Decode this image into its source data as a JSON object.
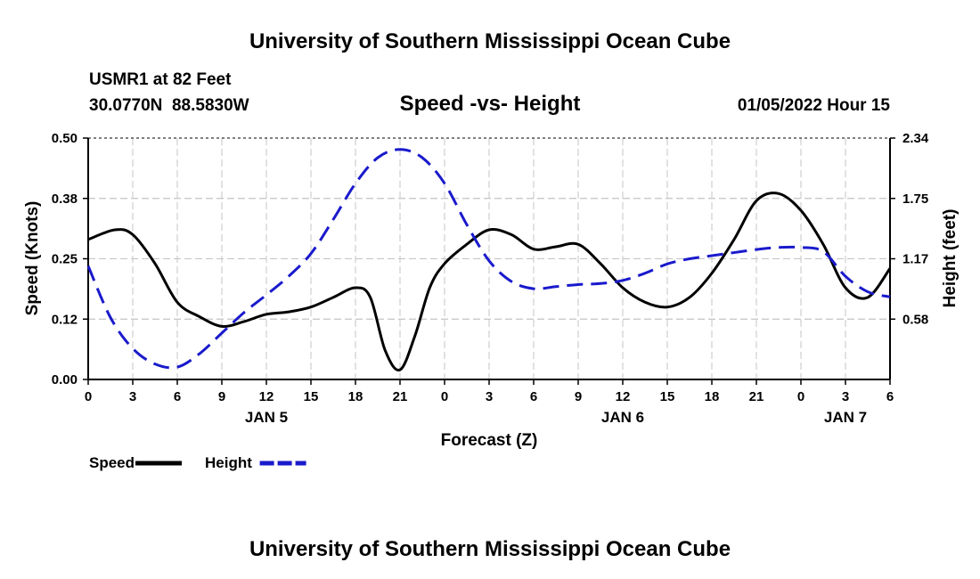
{
  "chart_data": {
    "type": "line",
    "title": "University of Southern Mississippi Ocean Cube",
    "footer_title": "University of Southern Mississippi Ocean Cube",
    "station": "USMR1 at 82 Feet",
    "location": "30.0770N  88.5830W",
    "subtitle": "Speed -vs- Height",
    "date": "01/05/2022 Hour 15",
    "xlabel": "Forecast (Z)",
    "ylabel": "Speed (Knots)",
    "ylabel_right": "Height (feet)",
    "x_ticks": [
      "0",
      "3",
      "6",
      "9",
      "12",
      "15",
      "18",
      "21",
      "0",
      "3",
      "6",
      "9",
      "12",
      "15",
      "18",
      "21",
      "0",
      "3",
      "6"
    ],
    "day_labels": [
      {
        "label": "JAN 5",
        "x": 12
      },
      {
        "label": "JAN 6",
        "x": 36
      },
      {
        "label": "JAN 7",
        "x": 51
      }
    ],
    "xlim": [
      0,
      54
    ],
    "ylim": [
      0,
      0.5
    ],
    "y_ticks": [
      "0.00",
      "0.12",
      "0.25",
      "0.38",
      "0.50"
    ],
    "ylim_right": [
      0,
      2.34
    ],
    "y_ticks_right": [
      "0.58",
      "1.17",
      "1.75",
      "2.34"
    ],
    "series": [
      {
        "name": "Speed",
        "axis": "left",
        "color": "#000000",
        "dash": "solid",
        "x": [
          0,
          1.8,
          3,
          4.5,
          6,
          7.5,
          9,
          10.5,
          12,
          13.5,
          15,
          16.5,
          18,
          19,
          20,
          21,
          22,
          23,
          24,
          25.5,
          27,
          28.5,
          30,
          31.5,
          33,
          34.5,
          36,
          37.5,
          39,
          40.5,
          42,
          43.5,
          45,
          46.5,
          48,
          49.5,
          51,
          52.5,
          54
        ],
        "values": [
          0.29,
          0.31,
          0.3,
          0.24,
          0.16,
          0.13,
          0.11,
          0.12,
          0.135,
          0.14,
          0.15,
          0.17,
          0.19,
          0.17,
          0.06,
          0.02,
          0.09,
          0.19,
          0.24,
          0.28,
          0.31,
          0.3,
          0.27,
          0.275,
          0.28,
          0.24,
          0.19,
          0.16,
          0.15,
          0.17,
          0.22,
          0.29,
          0.37,
          0.385,
          0.35,
          0.28,
          0.19,
          0.17,
          0.23
        ]
      },
      {
        "name": "Height",
        "axis": "right",
        "color": "#1a1acc",
        "dash": "dashed",
        "x": [
          0,
          1.5,
          3,
          4.5,
          6,
          7.5,
          9,
          10.5,
          12,
          13.5,
          15,
          16.5,
          18,
          19.5,
          21,
          22.5,
          24,
          25.5,
          27,
          28.5,
          30,
          31.5,
          33,
          34.5,
          36,
          37.5,
          39,
          40.5,
          42,
          43.5,
          45,
          46.5,
          48,
          49.5,
          51,
          52.5,
          54
        ],
        "values": [
          1.1,
          0.6,
          0.3,
          0.15,
          0.12,
          0.25,
          0.45,
          0.65,
          0.82,
          1.0,
          1.22,
          1.55,
          1.9,
          2.15,
          2.23,
          2.15,
          1.9,
          1.5,
          1.15,
          0.95,
          0.88,
          0.9,
          0.92,
          0.93,
          0.96,
          1.03,
          1.12,
          1.17,
          1.2,
          1.23,
          1.26,
          1.28,
          1.28,
          1.24,
          1.0,
          0.85,
          0.8
        ]
      }
    ]
  },
  "legend": [
    {
      "label": "Speed",
      "color": "#000000",
      "dash": "solid"
    },
    {
      "label": "Height",
      "color": "#1a1acc",
      "dash": "dashed"
    }
  ]
}
